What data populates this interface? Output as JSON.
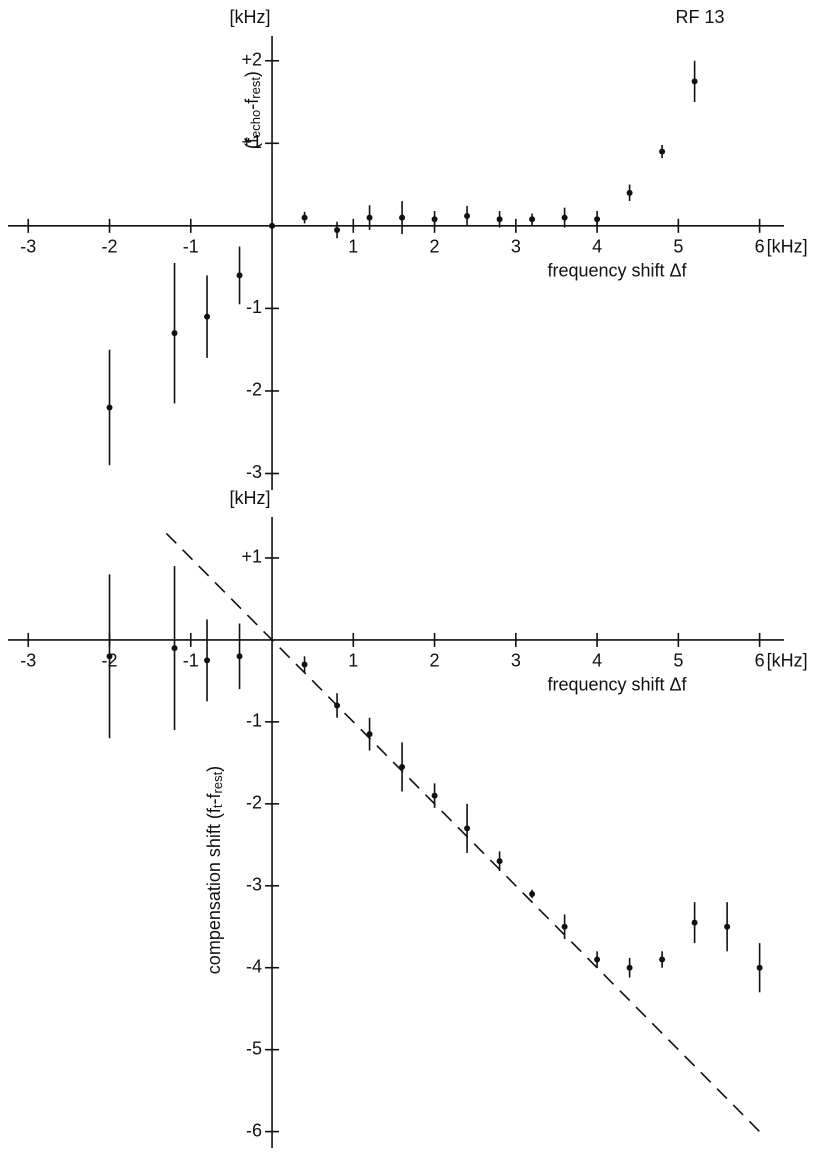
{
  "chart_data": [
    {
      "type": "scatter",
      "annotation": "RF 13",
      "y_unit": "[kHz]",
      "x_unit": "[kHz]",
      "x_label": "frequency shift Δf",
      "y_label_parts": [
        "(f",
        "echo",
        "-f",
        "rest",
        ")"
      ],
      "xlim": [
        -3.2,
        6.3
      ],
      "ylim": [
        -3.2,
        2.3
      ],
      "xticks": [
        -3,
        -2,
        -1,
        1,
        2,
        3,
        4,
        5,
        6
      ],
      "yticks": [
        {
          "value": 2,
          "label": "+2"
        },
        {
          "value": 1,
          "label": "+1"
        },
        -1,
        -2,
        -3
      ],
      "series": [
        {
          "color": "#111111",
          "x": [
            -2,
            -1.2,
            -0.8,
            -0.4,
            0,
            0.4,
            0.8,
            1.2,
            1.6,
            2.0,
            2.4,
            2.8,
            3.2,
            3.6,
            4.0,
            4.4,
            4.8,
            5.2
          ],
          "values": [
            -2.2,
            -1.3,
            -1.1,
            -0.6,
            0,
            0.1,
            -0.05,
            0.1,
            0.1,
            0.08,
            0.12,
            0.08,
            0.08,
            0.1,
            0.08,
            0.4,
            0.9,
            1.75
          ],
          "errors": [
            0.7,
            0.85,
            0.5,
            0.35,
            0,
            0.07,
            0.1,
            0.15,
            0.2,
            0.1,
            0.12,
            0.1,
            0.07,
            0.12,
            0.1,
            0.1,
            0.08,
            0.25
          ]
        }
      ]
    },
    {
      "type": "scatter",
      "y_unit": "[kHz]",
      "x_unit": "[kHz]",
      "x_label": "frequency shift Δf",
      "y_label_parts": [
        "compensation shift (f",
        "t",
        "-f",
        "rest",
        ")"
      ],
      "xlim": [
        -3.2,
        6.3
      ],
      "ylim": [
        -6.2,
        1.5
      ],
      "xticks": [
        -3,
        -2,
        -1,
        1,
        2,
        3,
        4,
        5,
        6
      ],
      "yticks": [
        {
          "value": 1,
          "label": "+1"
        },
        -1,
        -2,
        -3,
        -4,
        -5,
        -6
      ],
      "reference_line": {
        "x": [
          -1.3,
          6
        ],
        "y": [
          1.3,
          -6
        ]
      },
      "series": [
        {
          "color": "#111111",
          "x": [
            -2,
            -1.2,
            -0.8,
            -0.4,
            0.4,
            0.8,
            1.2,
            1.6,
            2.0,
            2.4,
            2.8,
            3.2,
            3.6,
            4.0,
            4.4,
            4.8,
            5.2,
            5.6,
            6.0
          ],
          "values": [
            -0.2,
            -0.1,
            -0.25,
            -0.2,
            -0.3,
            -0.8,
            -1.15,
            -1.55,
            -1.9,
            -2.3,
            -2.7,
            -3.1,
            -3.5,
            -3.9,
            -4.0,
            -3.9,
            -3.45,
            -3.5,
            -4.0
          ],
          "errors": [
            1.0,
            1.0,
            0.5,
            0.4,
            0.1,
            0.15,
            0.2,
            0.3,
            0.15,
            0.3,
            0.12,
            0.05,
            0.15,
            0.1,
            0.12,
            0.1,
            0.25,
            0.3,
            0.3
          ]
        }
      ]
    }
  ]
}
